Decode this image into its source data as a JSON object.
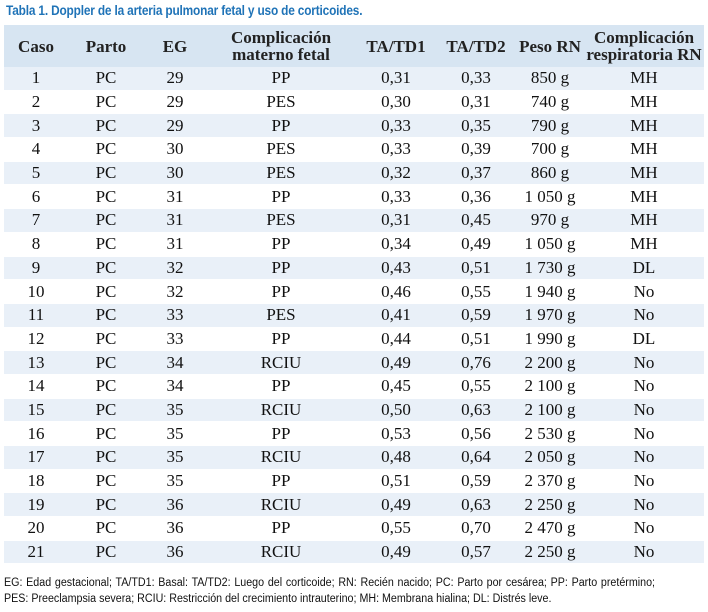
{
  "caption": "Tabla 1. Doppler de la arteria pulmonar fetal y uso de corticoides.",
  "headers": {
    "caso": "Caso",
    "parto": "Parto",
    "eg": "EG",
    "complicacion_materno": "Complicación materno fetal",
    "ta_td1": "TA/TD1",
    "ta_td2": "TA/TD2",
    "peso": "Peso RN",
    "complicacion_resp": "Complicación respiratoria RN"
  },
  "rows": [
    {
      "caso": "1",
      "parto": "PC",
      "eg": "29",
      "comp": "PP",
      "td1": "0,31",
      "td2": "0,33",
      "peso": "850 g",
      "resp": "MH"
    },
    {
      "caso": "2",
      "parto": "PC",
      "eg": "29",
      "comp": "PES",
      "td1": "0,30",
      "td2": "0,31",
      "peso": "740 g",
      "resp": "MH"
    },
    {
      "caso": "3",
      "parto": "PC",
      "eg": "29",
      "comp": "PP",
      "td1": "0,33",
      "td2": "0,35",
      "peso": "790 g",
      "resp": "MH"
    },
    {
      "caso": "4",
      "parto": "PC",
      "eg": "30",
      "comp": "PES",
      "td1": "0,33",
      "td2": "0,39",
      "peso": "700 g",
      "resp": "MH"
    },
    {
      "caso": "5",
      "parto": "PC",
      "eg": "30",
      "comp": "PES",
      "td1": "0,32",
      "td2": "0,37",
      "peso": "860 g",
      "resp": "MH"
    },
    {
      "caso": "6",
      "parto": "PC",
      "eg": "31",
      "comp": "PP",
      "td1": "0,33",
      "td2": "0,36",
      "peso": "1 050 g",
      "resp": "MH"
    },
    {
      "caso": "7",
      "parto": "PC",
      "eg": "31",
      "comp": "PES",
      "td1": "0,31",
      "td2": "0,45",
      "peso": "970 g",
      "resp": "MH"
    },
    {
      "caso": "8",
      "parto": "PC",
      "eg": "31",
      "comp": "PP",
      "td1": "0,34",
      "td2": "0,49",
      "peso": "1 050 g",
      "resp": "MH"
    },
    {
      "caso": "9",
      "parto": "PC",
      "eg": "32",
      "comp": "PP",
      "td1": "0,43",
      "td2": "0,51",
      "peso": "1 730 g",
      "resp": "DL"
    },
    {
      "caso": "10",
      "parto": "PC",
      "eg": "32",
      "comp": "PP",
      "td1": "0,46",
      "td2": "0,55",
      "peso": "1 940 g",
      "resp": "No"
    },
    {
      "caso": "11",
      "parto": "PC",
      "eg": "33",
      "comp": "PES",
      "td1": "0,41",
      "td2": "0,59",
      "peso": "1 970 g",
      "resp": "No"
    },
    {
      "caso": "12",
      "parto": "PC",
      "eg": "33",
      "comp": "PP",
      "td1": "0,44",
      "td2": "0,51",
      "peso": "1 990 g",
      "resp": "DL"
    },
    {
      "caso": "13",
      "parto": "PC",
      "eg": "34",
      "comp": "RCIU",
      "td1": "0,49",
      "td2": "0,76",
      "peso": "2 200 g",
      "resp": "No"
    },
    {
      "caso": "14",
      "parto": "PC",
      "eg": "34",
      "comp": "PP",
      "td1": "0,45",
      "td2": "0,55",
      "peso": "2 100 g",
      "resp": "No"
    },
    {
      "caso": "15",
      "parto": "PC",
      "eg": "35",
      "comp": "RCIU",
      "td1": "0,50",
      "td2": "0,63",
      "peso": "2 100 g",
      "resp": "No"
    },
    {
      "caso": "16",
      "parto": "PC",
      "eg": "35",
      "comp": "PP",
      "td1": "0,53",
      "td2": "0,56",
      "peso": "2 530 g",
      "resp": "No"
    },
    {
      "caso": "17",
      "parto": "PC",
      "eg": "35",
      "comp": "RCIU",
      "td1": "0,48",
      "td2": "0,64",
      "peso": "2 050 g",
      "resp": "No"
    },
    {
      "caso": "18",
      "parto": "PC",
      "eg": "35",
      "comp": "PP",
      "td1": "0,51",
      "td2": "0,59",
      "peso": "2 370 g",
      "resp": "No"
    },
    {
      "caso": "19",
      "parto": "PC",
      "eg": "36",
      "comp": "RCIU",
      "td1": "0,49",
      "td2": "0,63",
      "peso": "2 250 g",
      "resp": "No"
    },
    {
      "caso": "20",
      "parto": "PC",
      "eg": "36",
      "comp": "PP",
      "td1": "0,55",
      "td2": "0,70",
      "peso": "2 470 g",
      "resp": "No"
    },
    {
      "caso": "21",
      "parto": "PC",
      "eg": "36",
      "comp": "RCIU",
      "td1": "0,49",
      "td2": "0,57",
      "peso": "2 250 g",
      "resp": "No"
    }
  ],
  "footnote": "EG: Edad gestacional; TA/TD1: Basal: TA/TD2: Luego del corticoide; RN: Recién nacido; PC: Parto por cesárea; PP: Parto pretérmino; PES: Preeclampsia severa; RCIU: Restricción del crecimiento intrauterino; MH: Membrana hialina; DL: Distrés leve.",
  "colors": {
    "caption": "#1f73b7",
    "header_bg": "#d7e5f2",
    "row_stripe": "#e9f0f8"
  }
}
